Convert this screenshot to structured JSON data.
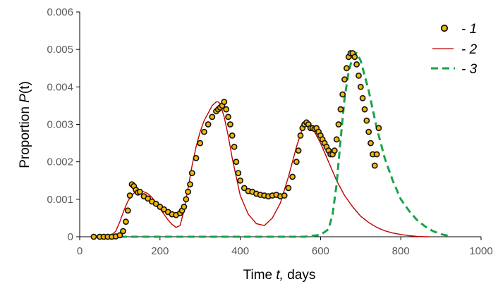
{
  "chart_data": {
    "type": "scatter",
    "title": "",
    "xlabel": {
      "prefix": "Time ",
      "var": "t,",
      "suffix": " days"
    },
    "ylabel": {
      "prefix": "Proportion  ",
      "var": "P",
      "suffix": "(t)"
    },
    "xlim": [
      0,
      1000
    ],
    "ylim": [
      0,
      0.006
    ],
    "xticks": [
      0,
      200,
      400,
      600,
      800,
      1000
    ],
    "yticks": [
      0,
      0.001,
      0.002,
      0.003,
      0.004,
      0.005,
      0.006
    ],
    "xtick_labels": [
      "0",
      "200",
      "400",
      "600",
      "800",
      "1000"
    ],
    "ytick_labels": [
      "0",
      "0.001",
      "0.002",
      "0.003",
      "0.004",
      "0.005",
      "0.006"
    ],
    "grid": false,
    "legend_position": "top-right",
    "colors": {
      "observed_fill": "#f5b800",
      "observed_edge": "#111111",
      "model": "#c00000",
      "forecast": "#1aa34a",
      "axis": "#000000"
    },
    "series": [
      {
        "name": "- 1",
        "type": "scatter",
        "x": [
          35,
          50,
          60,
          70,
          80,
          90,
          100,
          108,
          115,
          120,
          125,
          130,
          135,
          140,
          145,
          150,
          160,
          170,
          180,
          190,
          200,
          210,
          220,
          230,
          240,
          250,
          255,
          260,
          265,
          270,
          275,
          280,
          290,
          300,
          310,
          320,
          330,
          340,
          345,
          350,
          355,
          360,
          365,
          370,
          375,
          380,
          385,
          390,
          395,
          400,
          410,
          420,
          430,
          440,
          450,
          460,
          470,
          480,
          490,
          500,
          510,
          520,
          530,
          540,
          545,
          550,
          555,
          560,
          565,
          570,
          575,
          580,
          585,
          590,
          595,
          600,
          605,
          610,
          615,
          620,
          625,
          630,
          635,
          640,
          645,
          650,
          655,
          660,
          665,
          670,
          675,
          680,
          685,
          690,
          695,
          700,
          705,
          710,
          715,
          720,
          725,
          730,
          735,
          740,
          745
        ],
        "y": [
          0.0,
          0.0,
          0.0,
          0.0,
          0.0,
          1e-05,
          4e-05,
          0.00015,
          0.0004,
          0.0007,
          0.0011,
          0.0014,
          0.00135,
          0.00125,
          0.00118,
          0.0012,
          0.00108,
          0.00102,
          0.00094,
          0.00088,
          0.0008,
          0.00073,
          0.00066,
          0.0006,
          0.00058,
          0.00063,
          0.0007,
          0.0008,
          0.001,
          0.0012,
          0.0014,
          0.0017,
          0.0021,
          0.0025,
          0.0028,
          0.003,
          0.0032,
          0.00335,
          0.0034,
          0.00345,
          0.0035,
          0.0036,
          0.0034,
          0.0032,
          0.003,
          0.0027,
          0.0024,
          0.002,
          0.0017,
          0.0015,
          0.0013,
          0.00122,
          0.0012,
          0.00115,
          0.00112,
          0.0011,
          0.00108,
          0.0011,
          0.00112,
          0.00108,
          0.0011,
          0.0013,
          0.0016,
          0.002,
          0.0023,
          0.0027,
          0.0029,
          0.003,
          0.00305,
          0.003,
          0.0029,
          0.0029,
          0.00288,
          0.0029,
          0.0028,
          0.0027,
          0.0026,
          0.0025,
          0.0024,
          0.0023,
          0.0022,
          0.0022,
          0.0023,
          0.0026,
          0.003,
          0.0034,
          0.0038,
          0.0042,
          0.0045,
          0.0048,
          0.0049,
          0.0049,
          0.0048,
          0.0046,
          0.0043,
          0.004,
          0.0037,
          0.0034,
          0.0031,
          0.0028,
          0.0025,
          0.0022,
          0.0019,
          0.0022,
          0.0029
        ]
      },
      {
        "name": "- 2",
        "type": "line",
        "x": [
          60,
          70,
          80,
          90,
          100,
          110,
          120,
          130,
          140,
          150,
          160,
          170,
          180,
          190,
          200,
          210,
          220,
          230,
          240,
          250,
          260,
          270,
          280,
          290,
          300,
          310,
          320,
          330,
          340,
          345,
          350,
          360,
          370,
          380,
          390,
          400,
          420,
          440,
          460,
          480,
          500,
          520,
          540,
          555,
          560,
          565,
          570,
          580,
          590,
          600,
          620,
          640,
          660,
          680,
          700,
          720,
          740,
          760,
          780,
          800,
          820,
          840,
          860,
          870
        ],
        "y": [
          0.0,
          1e-05,
          5e-05,
          0.00015,
          0.0004,
          0.0007,
          0.00095,
          0.00112,
          0.0012,
          0.00122,
          0.0012,
          0.00115,
          0.00105,
          0.0009,
          0.00075,
          0.0006,
          0.00045,
          0.00033,
          0.00025,
          0.0003,
          0.0007,
          0.0013,
          0.0019,
          0.0024,
          0.0028,
          0.0031,
          0.0033,
          0.0035,
          0.0036,
          0.0036,
          0.00355,
          0.0032,
          0.0027,
          0.0021,
          0.0016,
          0.0011,
          0.0006,
          0.00035,
          0.0003,
          0.0005,
          0.0009,
          0.0016,
          0.0024,
          0.0029,
          0.00295,
          0.003,
          0.00298,
          0.0029,
          0.0027,
          0.0025,
          0.002,
          0.0015,
          0.0011,
          0.0008,
          0.00055,
          0.00038,
          0.00025,
          0.00016,
          0.0001,
          6e-05,
          3e-05,
          1e-05,
          0.0,
          0.0
        ]
      },
      {
        "name": "- 3",
        "type": "line",
        "x": [
          100,
          200,
          300,
          400,
          500,
          560,
          600,
          620,
          630,
          640,
          650,
          660,
          670,
          680,
          690,
          700,
          710,
          720,
          730,
          740,
          750,
          760,
          780,
          800,
          820,
          840,
          860,
          880,
          900,
          920
        ],
        "y": [
          0.0,
          0.0,
          0.0,
          0.0,
          0.0,
          0.0,
          5e-05,
          0.0002,
          0.0006,
          0.0014,
          0.0026,
          0.0037,
          0.0044,
          0.0048,
          0.0049,
          0.0047,
          0.0043,
          0.0039,
          0.0034,
          0.0029,
          0.0025,
          0.0021,
          0.0015,
          0.001,
          0.0007,
          0.00045,
          0.00028,
          0.00015,
          7e-05,
          2e-05
        ]
      }
    ]
  }
}
